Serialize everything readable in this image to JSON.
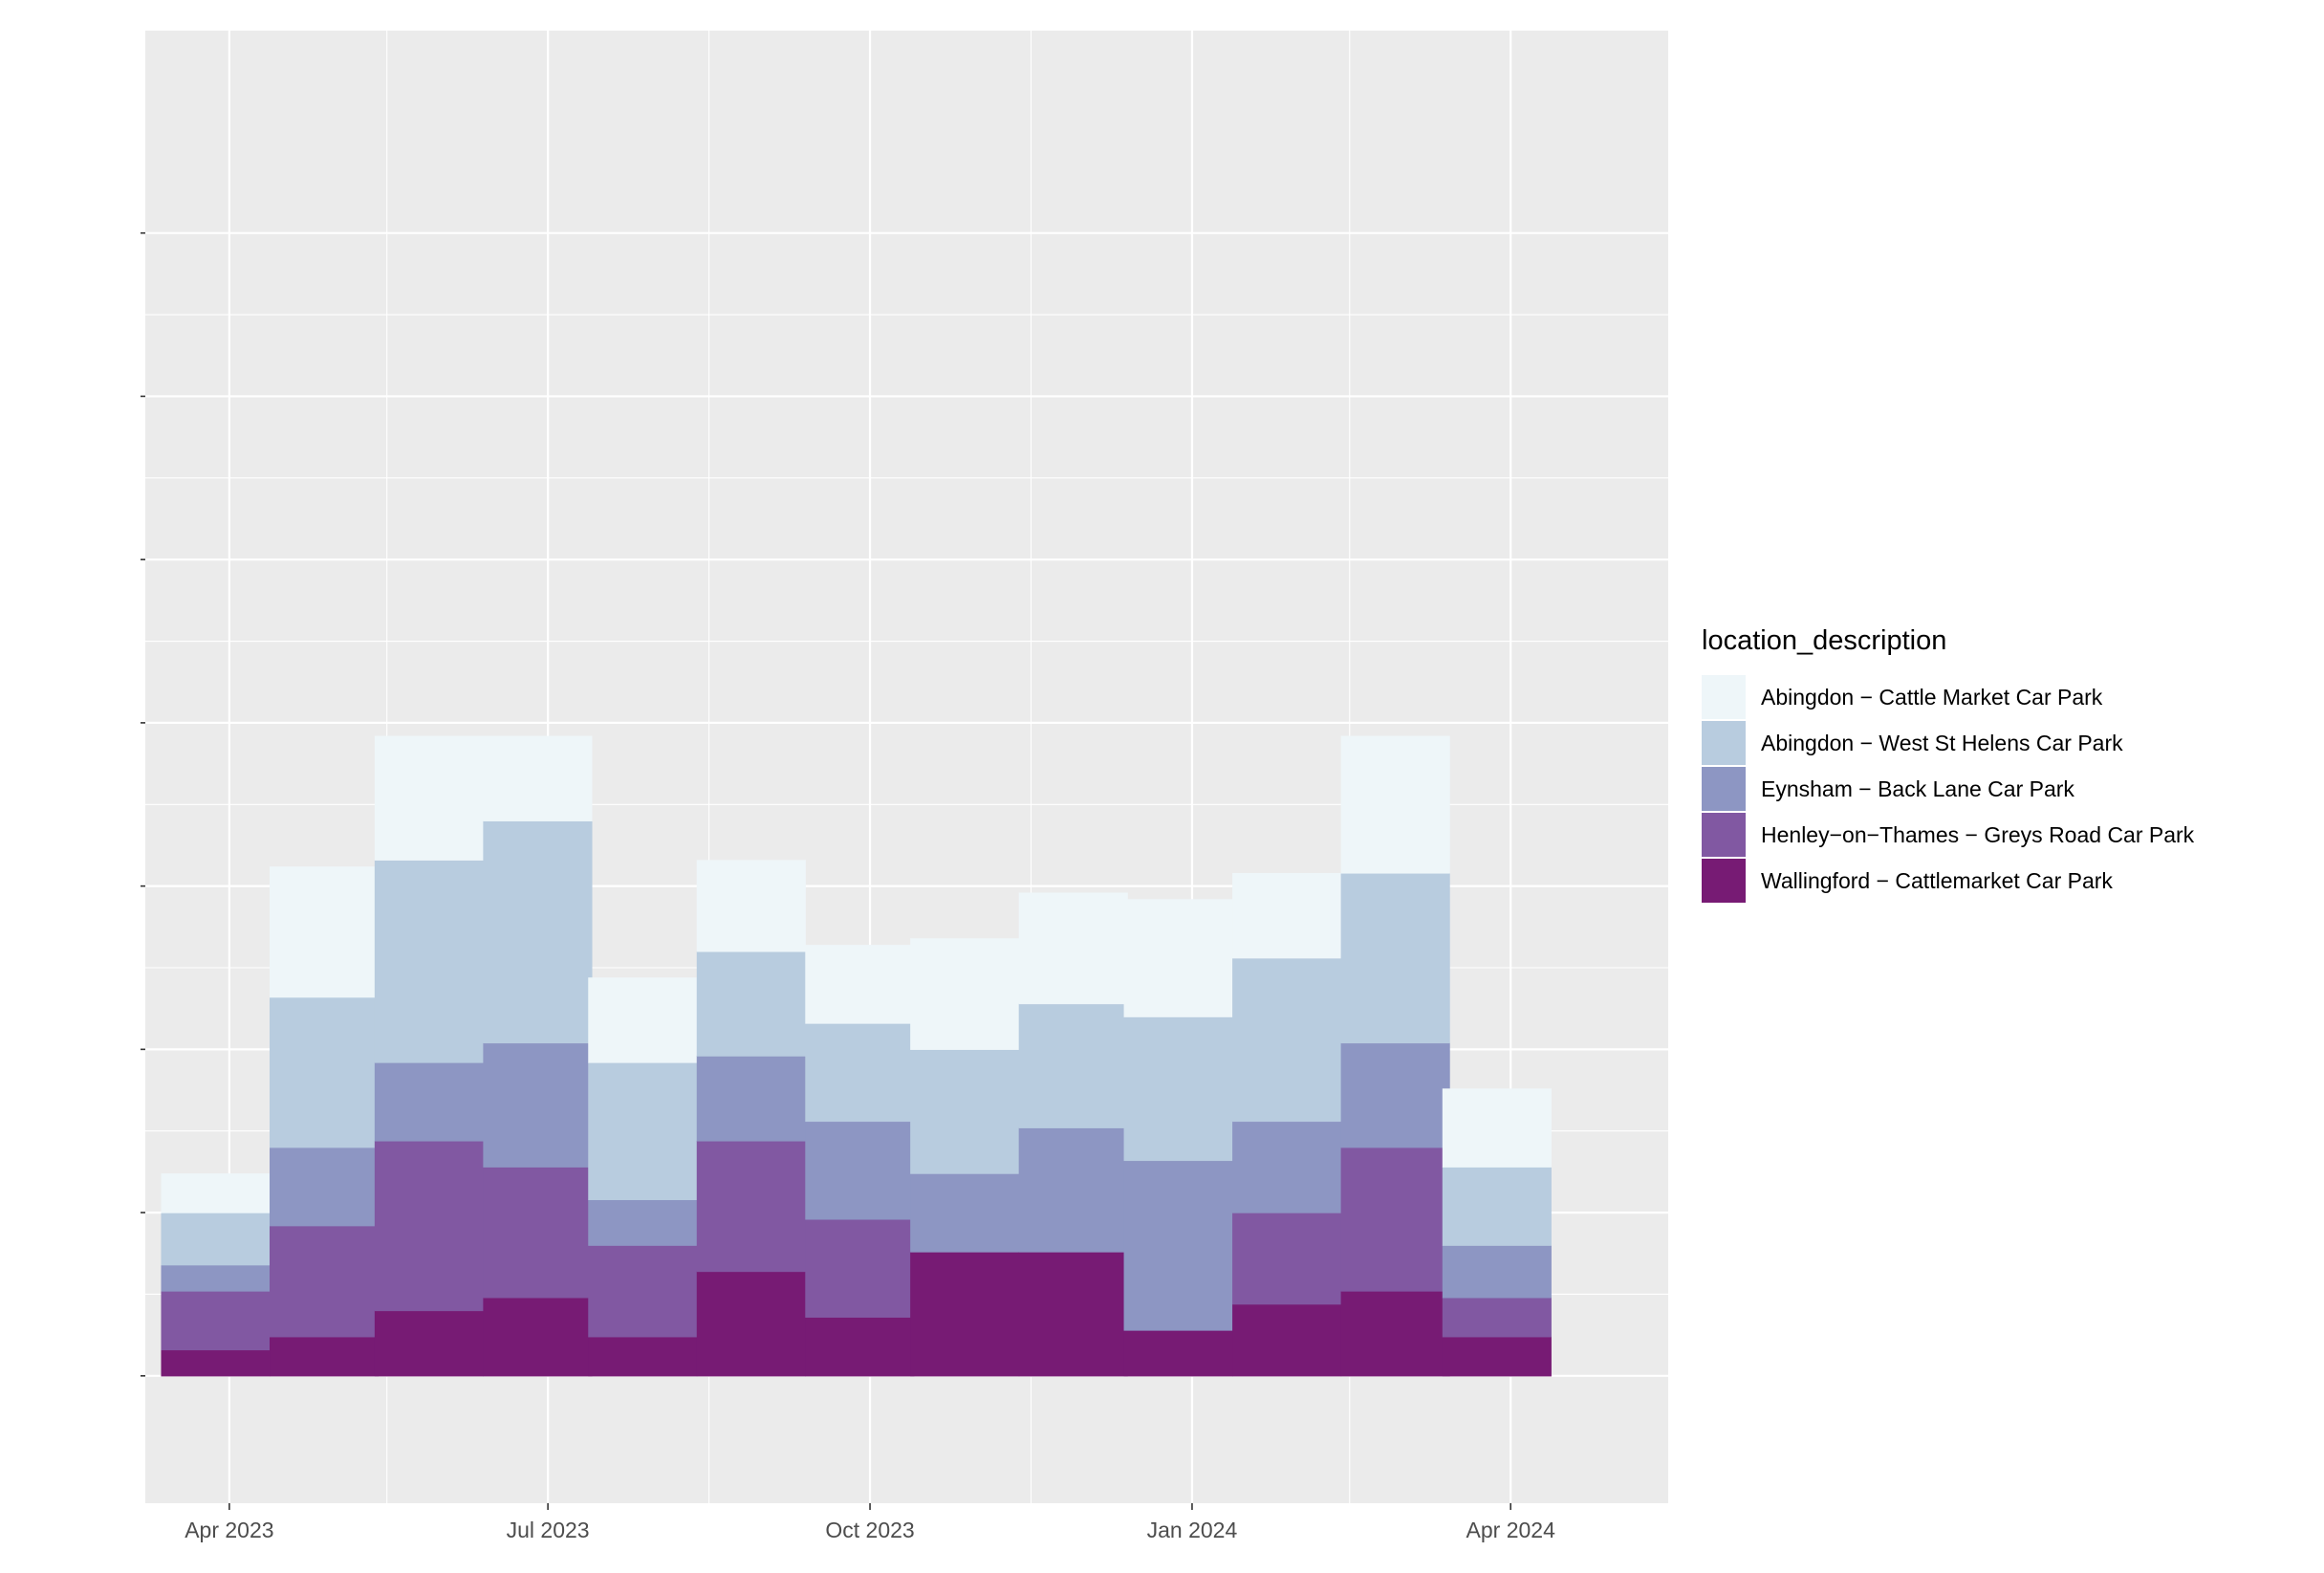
{
  "chart_data": {
    "type": "bar",
    "stacked": true,
    "bar_width": "one month",
    "categories": [
      "2023-03-28",
      "2023-04-28",
      "2023-05-28",
      "2023-06-28",
      "2023-07-28",
      "2023-08-28",
      "2023-09-28",
      "2023-10-28",
      "2023-11-28",
      "2023-12-28",
      "2024-01-28",
      "2024-02-28",
      "2024-03-28",
      "2024-04-28"
    ],
    "series": [
      {
        "name": "Wallingford − Cattlemarket Car Park",
        "color": "#771b74",
        "values": [
          0.4,
          0.6,
          1.0,
          1.2,
          0.6,
          1.6,
          0.9,
          1.9,
          1.9,
          0.7,
          1.1,
          1.3,
          0.6,
          0.0
        ]
      },
      {
        "name": "Henley−on−Thames − Greys Road Car Park",
        "color": "#8158a2",
        "values": [
          0.9,
          1.7,
          2.6,
          2.0,
          1.4,
          2.0,
          1.5,
          0.0,
          0.0,
          0.0,
          1.4,
          2.2,
          0.6,
          0.0
        ]
      },
      {
        "name": "Eynsham − Back Lane Car Park",
        "color": "#8d96c3",
        "values": [
          0.4,
          1.2,
          1.2,
          1.9,
          0.7,
          1.3,
          1.5,
          1.2,
          1.9,
          2.6,
          1.4,
          1.6,
          0.8,
          0.0
        ]
      },
      {
        "name": "Abingdon − West St Helens Car Park",
        "color": "#b8ccdf",
        "values": [
          0.8,
          2.3,
          3.1,
          3.4,
          2.1,
          1.6,
          1.5,
          1.9,
          1.9,
          2.2,
          2.5,
          2.6,
          1.2,
          0.0
        ]
      },
      {
        "name": "Abingdon − Cattle Market Car Park",
        "color": "#eef6f9",
        "values": [
          0.6,
          2.0,
          1.9,
          1.3,
          1.3,
          1.4,
          1.2,
          1.7,
          1.7,
          1.8,
          1.3,
          2.1,
          1.2,
          0.0
        ]
      }
    ],
    "x_ticks": [
      {
        "date": "2023-04-01",
        "label": "Apr 2023"
      },
      {
        "date": "2023-07-01",
        "label": "Jul 2023"
      },
      {
        "date": "2023-10-01",
        "label": "Oct 2023"
      },
      {
        "date": "2024-01-01",
        "label": "Jan 2024"
      },
      {
        "date": "2024-04-01",
        "label": "Apr 2024"
      }
    ],
    "x_minor_ticks": [
      "2023-05-16",
      "2023-08-16",
      "2023-11-16",
      "2024-02-15"
    ],
    "y_ticks": [
      0,
      2.5,
      5,
      7.5,
      10,
      12.5,
      15,
      17.5
    ],
    "y_tick_labels_visible": false,
    "xlim": [
      "2023-03-08",
      "2024-05-16"
    ],
    "ylim": [
      -1.95,
      20.6
    ],
    "grid": true,
    "legend": {
      "title": "location_description",
      "placement": "right",
      "order": [
        "Abingdon − Cattle Market Car Park",
        "Abingdon − West St Helens Car Park",
        "Eynsham − Back Lane Car Park",
        "Henley−on−Thames − Greys Road Car Park",
        "Wallingford − Cattlemarket Car Park"
      ]
    },
    "title": "",
    "xlabel": "",
    "ylabel": ""
  }
}
